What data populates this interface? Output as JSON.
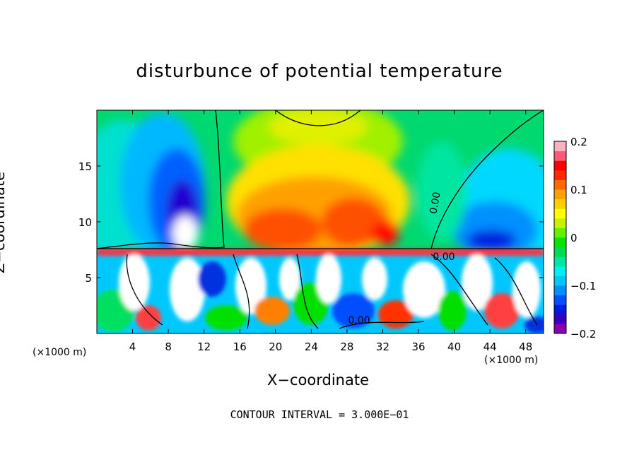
{
  "chart_data": {
    "type": "heatmap",
    "title": "disturbunce of potential temperature",
    "xlabel": "X−coordinate",
    "ylabel": "Z−coordinate",
    "x_unit": "(×1000 m)",
    "x_unit_right": "(×1000 m)",
    "xlim": [
      0,
      50
    ],
    "ylim": [
      0,
      20
    ],
    "x_ticks": [
      4,
      8,
      12,
      16,
      20,
      24,
      28,
      32,
      36,
      40,
      44,
      48
    ],
    "y_ticks": [
      5,
      10,
      15
    ],
    "colorbar": {
      "range": [
        -0.2,
        0.2
      ],
      "tick_labels": [
        "0.2",
        "0.1",
        "0",
        "−0.1",
        "−0.2"
      ],
      "tick_values": [
        0.2,
        0.1,
        0,
        -0.1,
        -0.2
      ],
      "colors": [
        "#8a00b0",
        "#3a00c0",
        "#0018e0",
        "#0050ff",
        "#0090ff",
        "#00c8ff",
        "#00f0f0",
        "#00e6a0",
        "#00dc50",
        "#00e600",
        "#66f000",
        "#c8f000",
        "#ffff00",
        "#ffd000",
        "#ffa000",
        "#ff6a00",
        "#ff2a00",
        "#ff0000",
        "#ff5a78",
        "#ffb0c0"
      ]
    },
    "contour_labels": [
      "0.00",
      "0.00",
      "0.00"
    ],
    "contour_interval_text": "CONTOUR INTERVAL = 3.000E−01"
  }
}
